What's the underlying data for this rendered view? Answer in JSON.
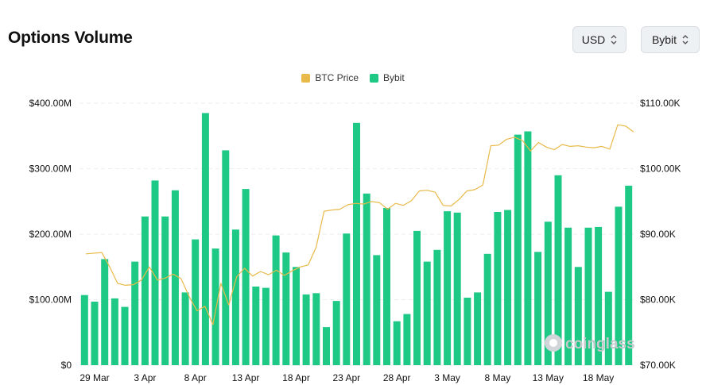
{
  "header": {
    "title": "Options Volume",
    "currency_select": "USD",
    "exchange_select": "Bybit"
  },
  "legend": [
    {
      "label": "BTC Price",
      "color": "#e9b949"
    },
    {
      "label": "Bybit",
      "color": "#1ec985"
    }
  ],
  "watermark": "coinglass",
  "chart_data": {
    "type": "bar",
    "title": "Options Volume",
    "x_tick_labels": [
      "29 Mar",
      "3 Apr",
      "8 Apr",
      "13 Apr",
      "18 Apr",
      "23 Apr",
      "28 Apr",
      "3 May",
      "8 May",
      "13 May",
      "18 May"
    ],
    "y_left": {
      "ticks": [
        "$0",
        "$100.00M",
        "$200.00M",
        "$300.00M",
        "$400.00M"
      ],
      "range": [
        0,
        400000000
      ]
    },
    "y_right": {
      "ticks": [
        "$70.00K",
        "$80.00K",
        "$90.00K",
        "$100.00K",
        "$110.00K"
      ],
      "range": [
        70000,
        110000
      ]
    },
    "grid": true,
    "legend_position": "top-center",
    "bar_color": "#1ec985",
    "line_color": "#e9b949",
    "series": [
      {
        "name": "Bybit",
        "type": "bar",
        "axis": "left",
        "values": [
          107000000,
          97000000,
          162000000,
          102000000,
          89000000,
          158000000,
          227000000,
          282000000,
          227000000,
          267000000,
          111000000,
          192000000,
          385000000,
          178000000,
          328000000,
          207000000,
          269000000,
          120000000,
          118000000,
          198000000,
          172000000,
          150000000,
          108000000,
          110000000,
          58000000,
          98000000,
          201000000,
          370000000,
          262000000,
          168000000,
          240000000,
          67000000,
          78000000,
          205000000,
          158000000,
          176000000,
          235000000,
          233000000,
          103000000,
          111000000,
          170000000,
          234000000,
          237000000,
          352000000,
          357000000,
          173000000,
          219000000,
          290000000,
          210000000,
          150000000,
          210000000,
          211000000,
          112000000,
          242000000,
          274000000
        ]
      },
      {
        "name": "BTC Price",
        "type": "line",
        "axis": "right",
        "values": [
          [
            0,
            87000
          ],
          [
            2,
            87200
          ],
          [
            3,
            85000
          ],
          [
            4,
            82500
          ],
          [
            5,
            82200
          ],
          [
            6,
            82300
          ],
          [
            7,
            83000
          ],
          [
            8,
            85000
          ],
          [
            9,
            83000
          ],
          [
            10,
            83300
          ],
          [
            11,
            83900
          ],
          [
            12,
            83200
          ],
          [
            13,
            80500
          ],
          [
            14,
            78300
          ],
          [
            15,
            79000
          ],
          [
            16,
            76200
          ],
          [
            17,
            82500
          ],
          [
            18,
            79200
          ],
          [
            19,
            83500
          ],
          [
            20,
            84800
          ],
          [
            21,
            83600
          ],
          [
            22,
            84300
          ],
          [
            23,
            83800
          ],
          [
            24,
            84500
          ],
          [
            25,
            83700
          ],
          [
            26,
            84400
          ],
          [
            27,
            85000
          ],
          [
            28,
            85300
          ],
          [
            29,
            88000
          ],
          [
            30,
            93500
          ],
          [
            31,
            93700
          ],
          [
            32,
            93800
          ],
          [
            33,
            94500
          ],
          [
            34,
            94700
          ],
          [
            35,
            94600
          ],
          [
            36,
            95000
          ],
          [
            37,
            94800
          ],
          [
            38,
            93800
          ],
          [
            39,
            94700
          ],
          [
            40,
            94400
          ],
          [
            41,
            95100
          ],
          [
            42,
            96600
          ],
          [
            43,
            96700
          ],
          [
            44,
            96400
          ],
          [
            45,
            94400
          ],
          [
            46,
            94300
          ],
          [
            47,
            95300
          ],
          [
            48,
            96600
          ],
          [
            49,
            96800
          ],
          [
            50,
            97500
          ],
          [
            51,
            103500
          ],
          [
            52,
            103600
          ],
          [
            53,
            104500
          ],
          [
            54,
            104800
          ],
          [
            55,
            104300
          ],
          [
            56,
            102700
          ],
          [
            57,
            104000
          ],
          [
            58,
            103300
          ],
          [
            59,
            102900
          ],
          [
            60,
            103700
          ],
          [
            61,
            103400
          ],
          [
            62,
            103500
          ],
          [
            63,
            103300
          ],
          [
            64,
            103200
          ],
          [
            65,
            103400
          ],
          [
            66,
            103000
          ],
          [
            67,
            106700
          ],
          [
            68,
            106500
          ],
          [
            69,
            105600
          ]
        ]
      }
    ]
  }
}
